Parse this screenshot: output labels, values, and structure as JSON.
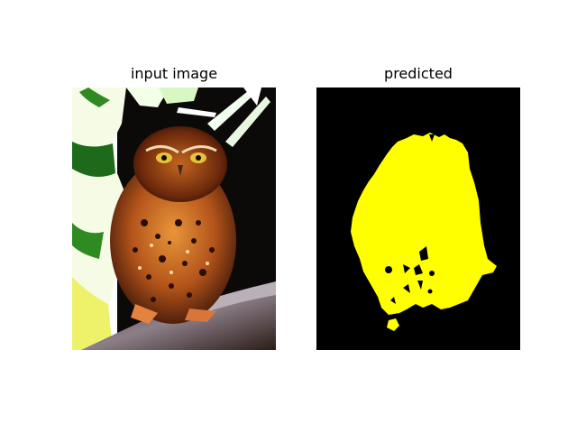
{
  "panels": {
    "input": {
      "title": "input image"
    },
    "predicted": {
      "title": "predicted",
      "mask_color": "#ffff00",
      "background_color": "#000000"
    }
  }
}
